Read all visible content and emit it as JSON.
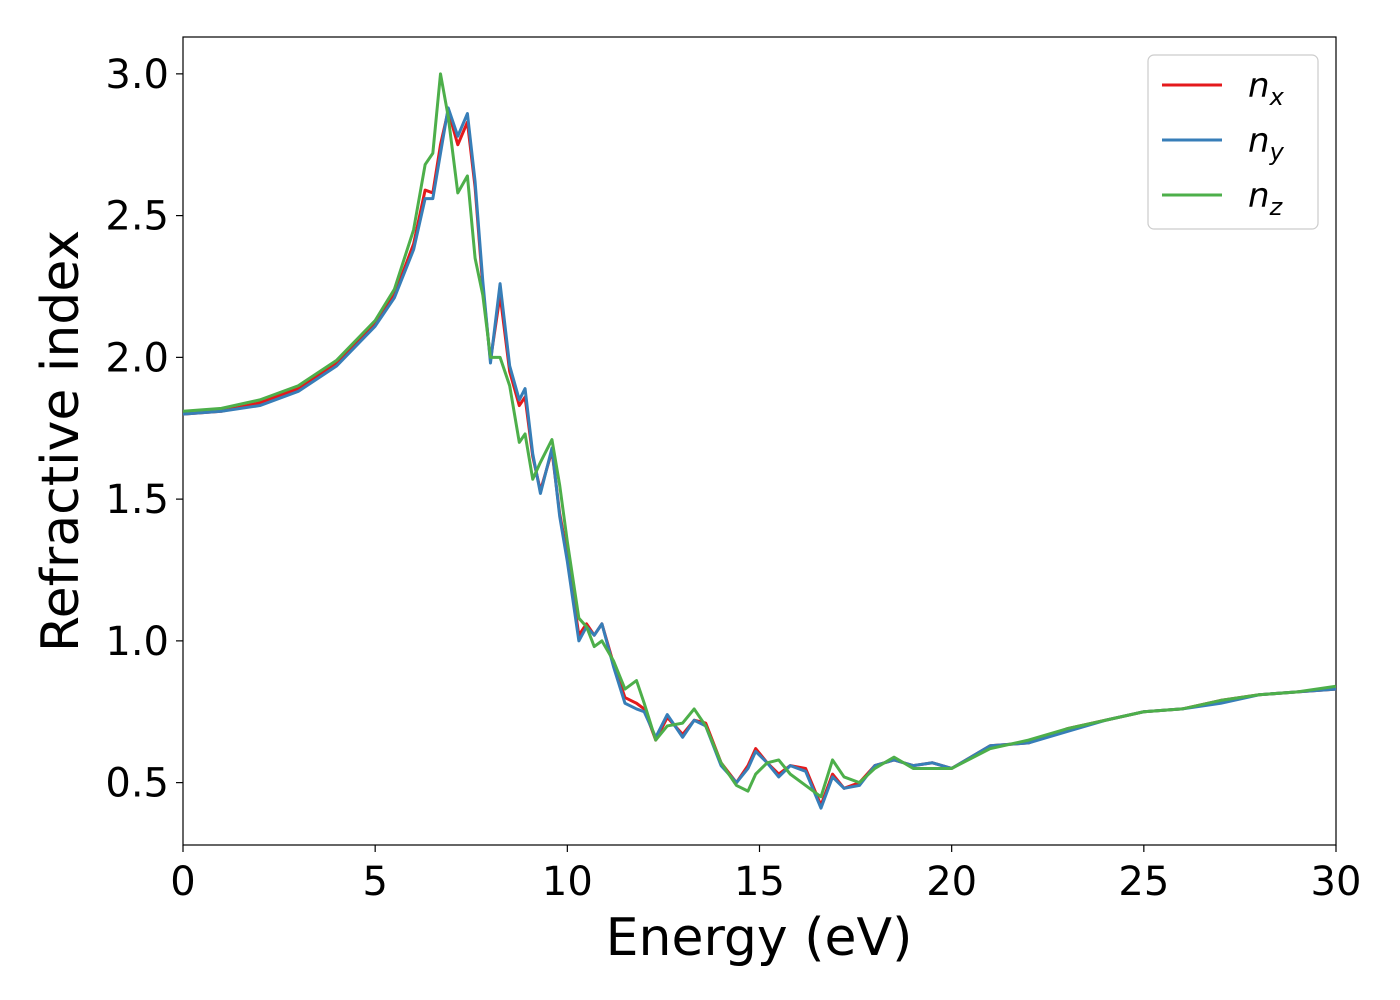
{
  "chart_data": {
    "type": "line",
    "x_label": "Energy (eV)",
    "y_label": "Refractive index",
    "x": [
      0,
      1,
      2,
      3,
      4,
      5,
      5.5,
      6,
      6.3,
      6.5,
      6.7,
      6.9,
      7.15,
      7.4,
      7.6,
      7.8,
      8.0,
      8.25,
      8.5,
      8.75,
      8.9,
      9.1,
      9.3,
      9.6,
      9.8,
      10.0,
      10.3,
      10.5,
      10.7,
      10.9,
      11.2,
      11.5,
      11.8,
      12.0,
      12.3,
      12.6,
      13.0,
      13.3,
      13.6,
      14.0,
      14.4,
      14.7,
      14.9,
      15.2,
      15.5,
      15.8,
      16.2,
      16.6,
      16.9,
      17.2,
      17.6,
      18.0,
      18.5,
      19.0,
      19.5,
      20.0,
      21.0,
      22.0,
      23.0,
      24.0,
      25.0,
      26.0,
      27.0,
      28.0,
      29.0,
      30.0
    ],
    "series": [
      {
        "name": "n_x",
        "color": "#e41a1c",
        "values": [
          1.8,
          1.81,
          1.84,
          1.89,
          1.98,
          2.12,
          2.22,
          2.4,
          2.59,
          2.58,
          2.75,
          2.87,
          2.75,
          2.83,
          2.6,
          2.25,
          1.99,
          2.22,
          1.95,
          1.83,
          1.86,
          1.65,
          1.53,
          1.67,
          1.45,
          1.3,
          1.02,
          1.06,
          1.02,
          1.06,
          0.92,
          0.8,
          0.78,
          0.76,
          0.65,
          0.73,
          0.67,
          0.72,
          0.71,
          0.57,
          0.5,
          0.56,
          0.62,
          0.57,
          0.53,
          0.56,
          0.55,
          0.42,
          0.53,
          0.48,
          0.5,
          0.56,
          0.58,
          0.56,
          0.57,
          0.55,
          0.63,
          0.64,
          0.69,
          0.72,
          0.75,
          0.76,
          0.79,
          0.81,
          0.82,
          0.83
        ]
      },
      {
        "name": "n_y",
        "color": "#377eb8",
        "values": [
          1.8,
          1.81,
          1.83,
          1.88,
          1.97,
          2.11,
          2.21,
          2.38,
          2.56,
          2.56,
          2.72,
          2.88,
          2.78,
          2.86,
          2.62,
          2.27,
          1.98,
          2.26,
          1.97,
          1.85,
          1.89,
          1.66,
          1.52,
          1.68,
          1.44,
          1.28,
          1.0,
          1.05,
          1.02,
          1.06,
          0.91,
          0.78,
          0.76,
          0.75,
          0.66,
          0.74,
          0.66,
          0.72,
          0.7,
          0.56,
          0.5,
          0.55,
          0.61,
          0.57,
          0.52,
          0.56,
          0.54,
          0.41,
          0.52,
          0.48,
          0.49,
          0.56,
          0.58,
          0.56,
          0.57,
          0.55,
          0.63,
          0.64,
          0.68,
          0.72,
          0.75,
          0.76,
          0.78,
          0.81,
          0.82,
          0.83
        ]
      },
      {
        "name": "n_z",
        "color": "#4daf4a",
        "values": [
          1.81,
          1.82,
          1.85,
          1.9,
          1.99,
          2.13,
          2.24,
          2.45,
          2.68,
          2.72,
          3.0,
          2.85,
          2.58,
          2.64,
          2.35,
          2.22,
          2.0,
          2.0,
          1.9,
          1.7,
          1.73,
          1.57,
          1.63,
          1.71,
          1.55,
          1.35,
          1.08,
          1.05,
          0.98,
          1.0,
          0.93,
          0.83,
          0.86,
          0.78,
          0.65,
          0.7,
          0.71,
          0.76,
          0.7,
          0.57,
          0.49,
          0.47,
          0.53,
          0.57,
          0.58,
          0.53,
          0.49,
          0.45,
          0.58,
          0.52,
          0.5,
          0.55,
          0.59,
          0.55,
          0.55,
          0.55,
          0.62,
          0.65,
          0.69,
          0.72,
          0.75,
          0.76,
          0.79,
          0.81,
          0.82,
          0.84
        ]
      }
    ],
    "xlim": [
      0,
      30
    ],
    "xticks": [
      0,
      5,
      10,
      15,
      20,
      25,
      30
    ],
    "ylim": [
      0.28,
      3.13
    ],
    "yticks": [
      0.5,
      {
        "value": 1.0,
        "label": "1.0"
      },
      1.5,
      {
        "value": 2.0,
        "label": "2.0"
      },
      2.5,
      {
        "value": 3.0,
        "label": "3.0"
      }
    ],
    "legend": "upper right"
  }
}
